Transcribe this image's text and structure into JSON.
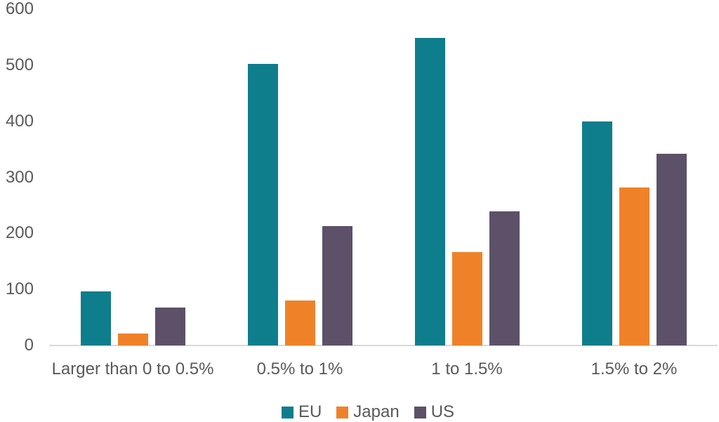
{
  "chart_data": {
    "type": "bar",
    "title": "",
    "xlabel": "",
    "ylabel": "",
    "categories": [
      "Larger than 0 to 0.5%",
      "0.5% to 1%",
      "1 to 1.5%",
      "1.5% to 2%"
    ],
    "series": [
      {
        "name": "EU",
        "color": "#0E7D8C",
        "values": [
          97,
          502,
          549,
          399
        ]
      },
      {
        "name": "Japan",
        "color": "#EF8228",
        "values": [
          21,
          80,
          166,
          282
        ]
      },
      {
        "name": "US",
        "color": "#5C5168",
        "values": [
          68,
          213,
          239,
          342
        ]
      }
    ],
    "ylim": [
      0,
      600
    ],
    "yticks": [
      0,
      100,
      200,
      300,
      400,
      500,
      600
    ],
    "grid": false,
    "legend_position": "bottom"
  },
  "colors": {
    "text": "#595959",
    "axis_line": "#D9D9D9",
    "background": "#FFFFFF"
  }
}
